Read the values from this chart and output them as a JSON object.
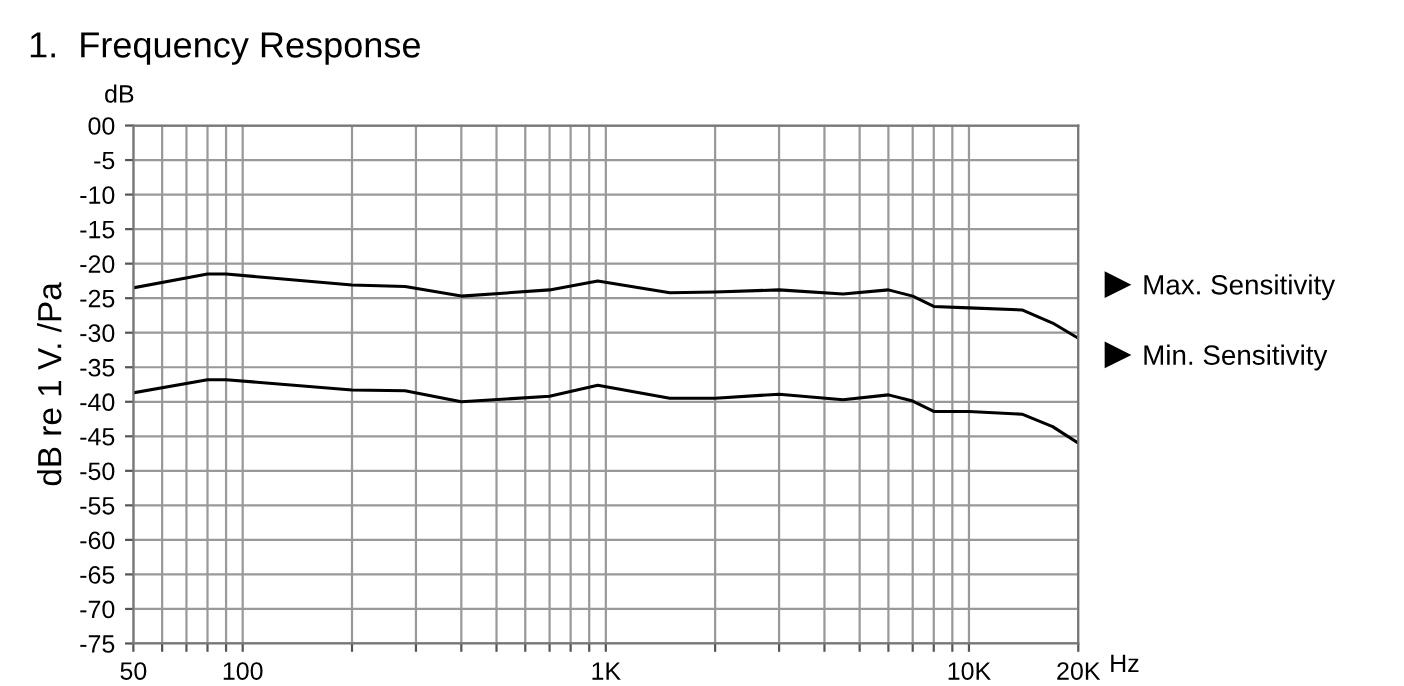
{
  "chart_data": {
    "type": "line",
    "title": "1.  Frequency Response",
    "ylabel": "dB re 1 V. /Pa",
    "annotations": [
      "dB",
      "Hz"
    ],
    "x": [
      50,
      80,
      90,
      200,
      280,
      400,
      700,
      950,
      1500,
      2000,
      3000,
      4500,
      6000,
      7000,
      8000,
      10000,
      14000,
      17000,
      20000
    ],
    "series": [
      {
        "name": "Max. Sensitivity",
        "color": "#000000",
        "values": [
          -23.5,
          -21.5,
          -21.5,
          -23.1,
          -23.3,
          -24.7,
          -23.8,
          -22.5,
          -24.2,
          -24.1,
          -23.8,
          -24.4,
          -23.8,
          -24.7,
          -26.2,
          -26.4,
          -26.7,
          -28.6,
          -30.8
        ]
      },
      {
        "name": "Min. Sensitivity",
        "color": "#000000",
        "values": [
          -38.7,
          -36.8,
          -36.8,
          -38.3,
          -38.4,
          -40.0,
          -39.2,
          -37.6,
          -39.5,
          -39.5,
          -38.9,
          -39.7,
          -39.0,
          -39.9,
          -41.4,
          -41.4,
          -41.8,
          -43.6,
          -46.0
        ]
      }
    ],
    "log": "x",
    "xlim": [
      50,
      20000
    ],
    "ylim": [
      -75,
      0
    ],
    "xticks": [
      50,
      {
        "value": 60,
        "label": null
      },
      {
        "value": 70,
        "label": null
      },
      {
        "value": 80,
        "label": null
      },
      {
        "value": 90,
        "label": null
      },
      100,
      {
        "value": 200,
        "label": null
      },
      {
        "value": 300,
        "label": null
      },
      {
        "value": 400,
        "label": null
      },
      {
        "value": 500,
        "label": null
      },
      {
        "value": 600,
        "label": null
      },
      {
        "value": 700,
        "label": null
      },
      {
        "value": 800,
        "label": null
      },
      {
        "value": 900,
        "label": null
      },
      {
        "value": 1000,
        "label": "1K"
      },
      {
        "value": 2000,
        "label": null
      },
      {
        "value": 3000,
        "label": null
      },
      {
        "value": 4000,
        "label": null
      },
      {
        "value": 5000,
        "label": null
      },
      {
        "value": 6000,
        "label": null
      },
      {
        "value": 7000,
        "label": null
      },
      {
        "value": 8000,
        "label": null
      },
      {
        "value": 9000,
        "label": null
      },
      {
        "value": 10000,
        "label": "10K"
      },
      {
        "value": 20000,
        "label": "20K"
      }
    ],
    "yticks": [
      {
        "value": 0,
        "label": "00"
      },
      -5,
      -10,
      -15,
      -20,
      -25,
      -30,
      -35,
      -40,
      -45,
      -50,
      -55,
      -60,
      -65,
      -70,
      -75
    ],
    "grid": true,
    "legend": "right",
    "marker": "none",
    "line_style": "solid"
  }
}
